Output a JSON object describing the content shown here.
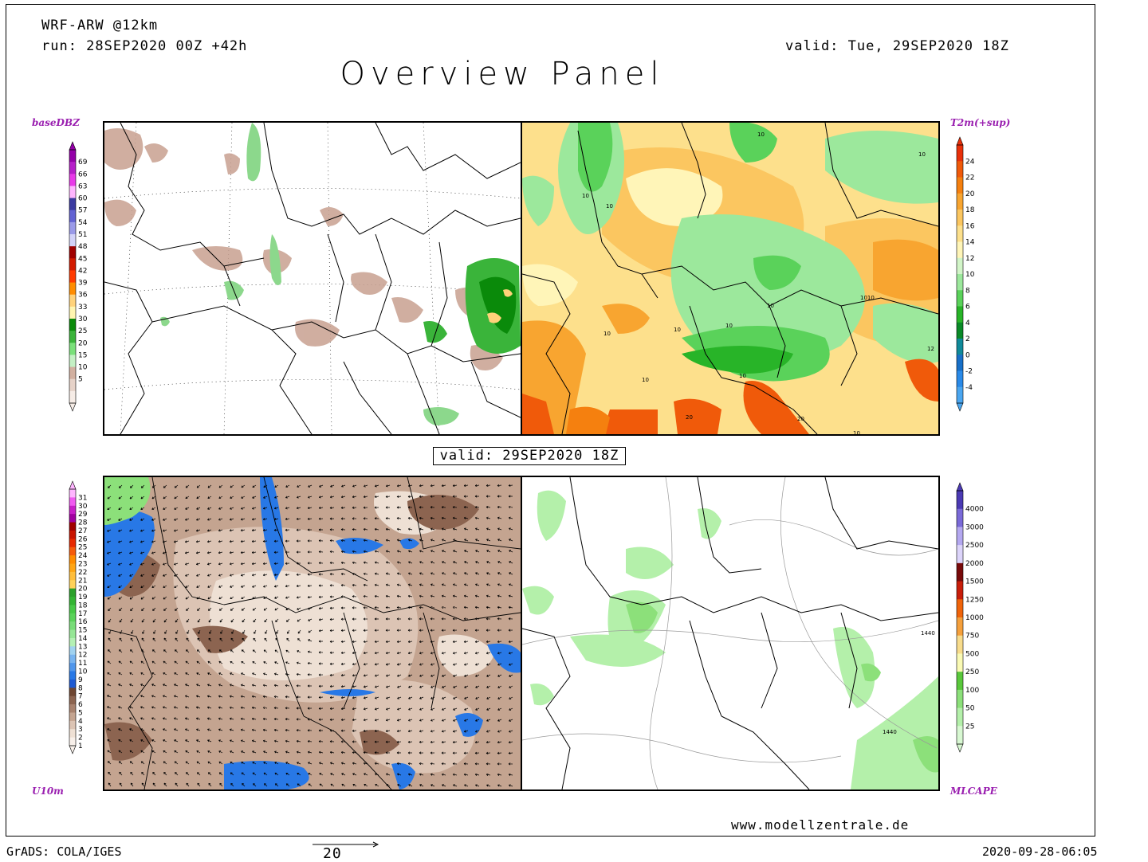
{
  "header": {
    "model": "WRF-ARW @12km",
    "run": "run: 28SEP2020 00Z +42h",
    "valid": "valid: Tue, 29SEP2020 18Z",
    "title": "Overview Panel"
  },
  "panels": {
    "top_left": {
      "label": "baseDBZ"
    },
    "top_right": {
      "label": "T2m(+sup)",
      "contour_labels": [
        "10",
        "10",
        "10",
        "10",
        "10",
        "10",
        "1010",
        "10",
        "10",
        "10",
        "20",
        "20",
        "10",
        "12",
        "10"
      ]
    },
    "bottom_left": {
      "label": "U10m"
    },
    "bottom_right": {
      "label": "MLCAPE",
      "contour_labels": [
        "1440",
        "1440"
      ]
    }
  },
  "colorbars": {
    "dbz": {
      "labels": [
        "69",
        "66",
        "63",
        "60",
        "57",
        "54",
        "51",
        "48",
        "45",
        "42",
        "39",
        "36",
        "33",
        "30",
        "25",
        "20",
        "15",
        "10",
        "5"
      ],
      "colors": [
        "#9400a8",
        "#b61fc9",
        "#e83ae8",
        "#ffb5ff",
        "#3a3aa0",
        "#6262d2",
        "#9a9ae8",
        "#d2d2f8",
        "#a00000",
        "#d21a00",
        "#ff3a00",
        "#ff8c00",
        "#ffd27a",
        "#fff5b0",
        "#0a8a0a",
        "#3ab43a",
        "#7ae07a",
        "#c4f0c4",
        "#d2b0a0",
        "#e6d2c8",
        "#f6ece6"
      ]
    },
    "t2m": {
      "labels": [
        "24",
        "22",
        "20",
        "18",
        "16",
        "14",
        "12",
        "10",
        "8",
        "6",
        "4",
        "2",
        "0",
        "-2",
        "-4"
      ],
      "colors": [
        "#e8300a",
        "#f05a0a",
        "#f5800f",
        "#f8a530",
        "#fbc660",
        "#fde08c",
        "#fff5b8",
        "#d2f5c8",
        "#9ce89c",
        "#5ad25a",
        "#28b428",
        "#0a8a28",
        "#108a9a",
        "#1870c8",
        "#2a8ae8",
        "#4aa6f0"
      ]
    },
    "wind": {
      "labels": [
        "31",
        "30",
        "29",
        "28",
        "27",
        "26",
        "25",
        "24",
        "23",
        "22",
        "21",
        "20",
        "19",
        "18",
        "17",
        "16",
        "15",
        "14",
        "13",
        "12",
        "11",
        "10",
        "9",
        "8",
        "7",
        "6",
        "5",
        "4",
        "3",
        "2",
        "1"
      ],
      "colors": [
        "#ffb5ff",
        "#f05af0",
        "#c81ec8",
        "#a000a0",
        "#a00000",
        "#c81400",
        "#e62800",
        "#f55a0a",
        "#ff8c00",
        "#ffa514",
        "#ffbe3c",
        "#ffd25a",
        "#2aa02a",
        "#32b432",
        "#46c846",
        "#5ad25a",
        "#78dc78",
        "#96e696",
        "#b4f0b4",
        "#a0d2f0",
        "#78b4f0",
        "#5096eb",
        "#2878e6",
        "#1e5ad2",
        "#6e4632",
        "#8c6450",
        "#a8826e",
        "#c4a490",
        "#dcc4b4",
        "#eee0d4",
        "#f8f0ea"
      ]
    },
    "cape": {
      "labels": [
        "4000",
        "3000",
        "2500",
        "2000",
        "1500",
        "1250",
        "1000",
        "750",
        "500",
        "250",
        "100",
        "50",
        "25"
      ],
      "colors": [
        "#4b3ab4",
        "#7a6ad8",
        "#b4a8f0",
        "#dcd4fa",
        "#780a0a",
        "#c81e0a",
        "#f0640a",
        "#f5a03c",
        "#f8dc8c",
        "#fafab4",
        "#5ac83c",
        "#8ce07a",
        "#b4f0aa",
        "#d8f8d2"
      ]
    }
  },
  "valid_box": "valid: 29SEP2020 18Z",
  "footer": {
    "website": "www.modellzentrale.de",
    "grads": "GrADS: COLA/IGES",
    "vector_ref": "20",
    "timestamp": "2020-09-28-06:05"
  }
}
